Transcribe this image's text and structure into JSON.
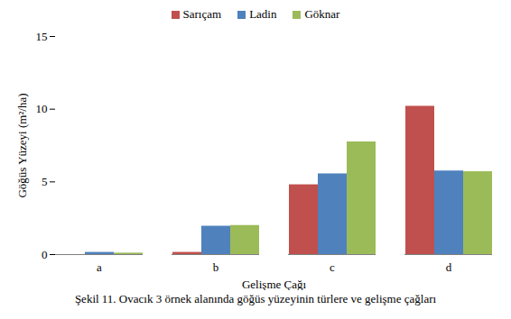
{
  "chart_data": {
    "type": "bar",
    "caption": "Şekil 11. Ovacık 3 örnek alanında göğüs yüzeyinin türlere ve gelişme çağları",
    "x_label": "Gelişme Çağı",
    "y_label": "Göğüs Yüzeyi (m²/ha)",
    "categories": [
      "a",
      "b",
      "c",
      "d"
    ],
    "series": [
      {
        "name": "Sarıçam",
        "color": "#c0504d",
        "values": [
          0,
          0.15,
          4.8,
          10.2
        ]
      },
      {
        "name": "Ladin",
        "color": "#4f81bd",
        "values": [
          0.15,
          1.95,
          5.55,
          5.75
        ]
      },
      {
        "name": "Göknar",
        "color": "#9bbb59",
        "values": [
          0.1,
          2.0,
          7.75,
          5.7
        ]
      }
    ],
    "ylim": [
      0,
      15
    ],
    "yticks": [
      0,
      5,
      10,
      15
    ],
    "grid": false,
    "legend": "top"
  }
}
